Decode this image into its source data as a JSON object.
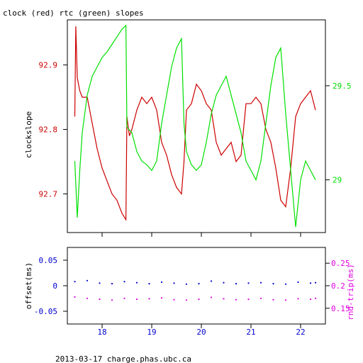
{
  "title": "clock (red) rtc (green) slopes",
  "footer": "2013-03-17 charge.phas.ubc.ca",
  "colors": {
    "clock": "#cc0000",
    "rtc": "#00e000",
    "offset": "#0000cc",
    "rtrip": "#e000e0",
    "axis": "#000000"
  },
  "chart_data": [
    {
      "type": "line",
      "title": "clock (red) rtc (green) slopes",
      "ylabel": "clockslope",
      "xlim": [
        17.3,
        22.5
      ],
      "ylim": [
        92.64,
        92.97
      ],
      "y2lim": [
        28.72,
        29.85
      ],
      "x_ticks": [
        18,
        19,
        20,
        21,
        22
      ],
      "y_ticks": [
        92.7,
        92.8,
        92.9
      ],
      "y_tick_labels": [
        "92.7",
        "92.8",
        "92.9"
      ],
      "y2_ticks": [
        29,
        29.5
      ],
      "y2_tick_labels": [
        "29",
        "29.5"
      ],
      "series": [
        {
          "name": "clock",
          "axis": "left",
          "x": [
            17.45,
            17.47,
            17.5,
            17.55,
            17.6,
            17.7,
            17.8,
            17.9,
            18.0,
            18.1,
            18.2,
            18.3,
            18.4,
            18.48,
            18.5,
            18.55,
            18.6,
            18.7,
            18.8,
            18.9,
            19.0,
            19.1,
            19.2,
            19.3,
            19.4,
            19.5,
            19.6,
            19.65,
            19.7,
            19.8,
            19.9,
            20.0,
            20.1,
            20.2,
            20.3,
            20.4,
            20.5,
            20.6,
            20.7,
            20.8,
            20.9,
            21.0,
            21.1,
            21.2,
            21.3,
            21.4,
            21.5,
            21.6,
            21.7,
            21.8,
            21.9,
            22.0,
            22.1,
            22.2,
            22.3
          ],
          "values": [
            92.82,
            92.96,
            92.88,
            92.86,
            92.85,
            92.85,
            92.81,
            92.77,
            92.74,
            92.72,
            92.7,
            92.69,
            92.67,
            92.66,
            92.82,
            92.79,
            92.8,
            92.83,
            92.85,
            92.84,
            92.85,
            92.83,
            92.78,
            92.76,
            92.73,
            92.71,
            92.7,
            92.75,
            92.83,
            92.84,
            92.87,
            92.86,
            92.84,
            92.83,
            92.78,
            92.76,
            92.77,
            92.78,
            92.75,
            92.76,
            92.84,
            92.84,
            92.85,
            92.84,
            92.8,
            92.78,
            92.74,
            92.69,
            92.68,
            92.74,
            92.82,
            92.84,
            92.85,
            92.86,
            92.83
          ]
        },
        {
          "name": "rtc",
          "axis": "right",
          "x": [
            17.45,
            17.5,
            17.55,
            17.6,
            17.7,
            17.8,
            17.9,
            18.0,
            18.1,
            18.2,
            18.3,
            18.4,
            18.48,
            18.5,
            18.6,
            18.7,
            18.8,
            18.9,
            19.0,
            19.1,
            19.2,
            19.3,
            19.4,
            19.5,
            19.6,
            19.65,
            19.7,
            19.8,
            19.9,
            20.0,
            20.1,
            20.2,
            20.3,
            20.4,
            20.5,
            20.6,
            20.7,
            20.8,
            20.9,
            21.0,
            21.1,
            21.2,
            21.3,
            21.4,
            21.5,
            21.6,
            21.7,
            21.8,
            21.9,
            22.0,
            22.1,
            22.2,
            22.3
          ],
          "values": [
            29.1,
            28.8,
            29.05,
            29.25,
            29.45,
            29.55,
            29.6,
            29.65,
            29.68,
            29.72,
            29.76,
            29.8,
            29.82,
            29.28,
            29.25,
            29.15,
            29.1,
            29.08,
            29.05,
            29.1,
            29.3,
            29.45,
            29.6,
            29.7,
            29.75,
            29.3,
            29.15,
            29.08,
            29.05,
            29.08,
            29.2,
            29.35,
            29.45,
            29.5,
            29.55,
            29.45,
            29.35,
            29.25,
            29.1,
            29.05,
            29.0,
            29.1,
            29.3,
            29.5,
            29.65,
            29.7,
            29.35,
            29.05,
            28.75,
            29.0,
            29.1,
            29.05,
            29.0
          ]
        }
      ]
    },
    {
      "type": "scatter",
      "ylabel": "offset(ms)",
      "y2label": "rnd-trip(ms)",
      "xlim": [
        17.3,
        22.5
      ],
      "ylim": [
        -0.075,
        0.075
      ],
      "y2lim": [
        0.115,
        0.285
      ],
      "x_ticks": [
        18,
        19,
        20,
        21,
        22
      ],
      "x_tick_labels": [
        "18",
        "19",
        "20",
        "21",
        "22"
      ],
      "y_ticks": [
        -0.05,
        0,
        0.05
      ],
      "y_tick_labels": [
        "-0.05",
        "0",
        "0.05"
      ],
      "y2_ticks": [
        0.15,
        0.2,
        0.25
      ],
      "y2_tick_labels": [
        "0.15",
        "0.2",
        "0.25"
      ],
      "series": [
        {
          "name": "offset",
          "axis": "left",
          "x": [
            17.45,
            17.7,
            17.95,
            18.2,
            18.45,
            18.7,
            18.95,
            19.2,
            19.45,
            19.7,
            19.95,
            20.2,
            20.45,
            20.7,
            20.95,
            21.2,
            21.45,
            21.7,
            21.95,
            22.2,
            22.3
          ],
          "values": [
            0.008,
            0.01,
            0.005,
            0.004,
            0.008,
            0.006,
            0.004,
            0.007,
            0.005,
            0.003,
            0.004,
            0.009,
            0.006,
            0.004,
            0.005,
            0.006,
            0.004,
            0.003,
            0.007,
            0.005,
            0.006
          ]
        },
        {
          "name": "rnd-trip",
          "axis": "right",
          "x": [
            17.45,
            17.7,
            17.95,
            18.2,
            18.45,
            18.7,
            18.95,
            19.2,
            19.45,
            19.7,
            19.95,
            20.2,
            20.45,
            20.7,
            20.95,
            21.2,
            21.45,
            21.7,
            21.95,
            22.2,
            22.3
          ],
          "values": [
            0.175,
            0.172,
            0.17,
            0.168,
            0.172,
            0.17,
            0.171,
            0.173,
            0.169,
            0.168,
            0.17,
            0.174,
            0.171,
            0.169,
            0.17,
            0.172,
            0.169,
            0.168,
            0.171,
            0.17,
            0.172
          ]
        }
      ]
    }
  ]
}
